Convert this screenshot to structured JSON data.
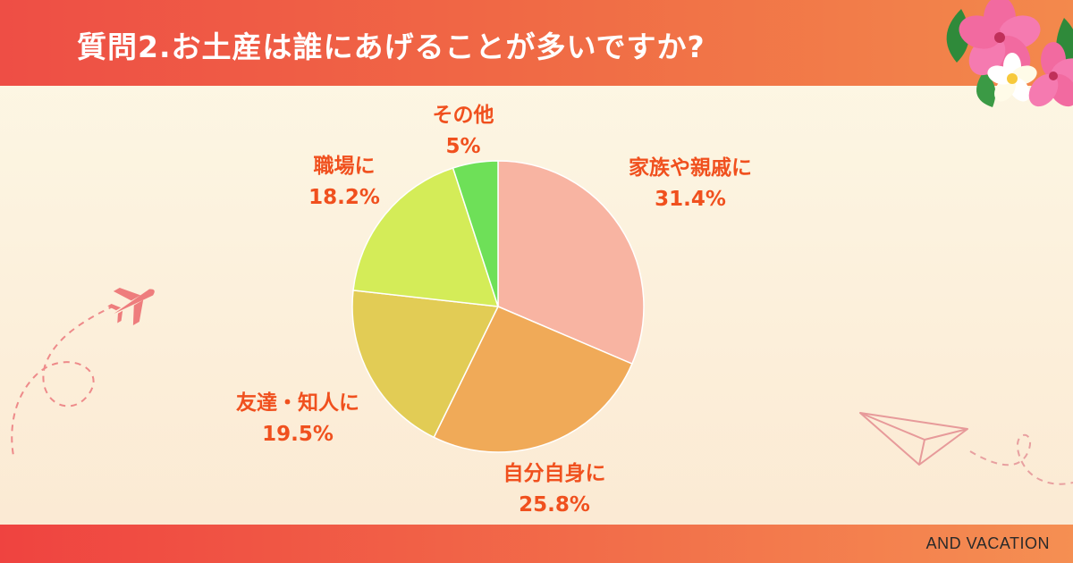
{
  "header": {
    "title": "質問2.お土産は誰にあげることが多いですか?"
  },
  "footer": {
    "brand": "AND VACATION"
  },
  "colors": {
    "header": "#ef5545",
    "label_text": "#f0501e",
    "background": "#fcf3df"
  },
  "icons": [
    "hibiscus-flower-decoration",
    "airplane-icon",
    "paper-plane-icon"
  ],
  "chart_data": {
    "type": "pie",
    "categories": [
      "家族や親戚に",
      "自分自身に",
      "友達・知人に",
      "職場に",
      "その他"
    ],
    "values": [
      31.4,
      25.8,
      19.5,
      18.2,
      5
    ],
    "value_labels": [
      "31.4%",
      "25.8%",
      "19.5%",
      "18.2%",
      "5%"
    ],
    "colors": [
      "#f8b4a2",
      "#f0aa58",
      "#e2cc55",
      "#d4ec58",
      "#6ee058"
    ],
    "start_angle": "12 o'clock",
    "direction": "clockwise",
    "legend": "none"
  }
}
